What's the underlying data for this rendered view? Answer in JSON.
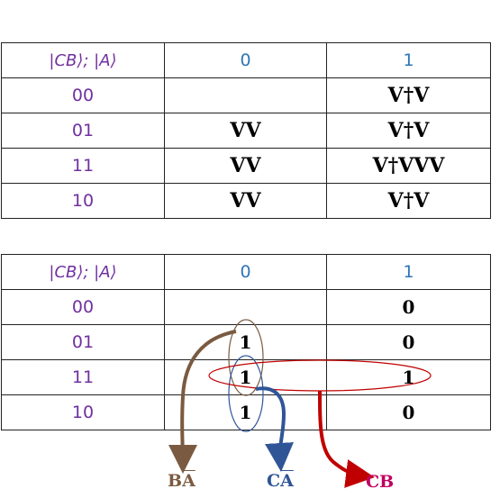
{
  "header": {
    "corner_label": "|CB⟩; |A⟩",
    "col0": "0",
    "col1": "1"
  },
  "top_table": {
    "rows": [
      {
        "label": "00",
        "c0": "",
        "c1": "V†V"
      },
      {
        "label": "01",
        "c0": "VV",
        "c1": "V†V"
      },
      {
        "label": "11",
        "c0": "VV",
        "c1": "V†VVV"
      },
      {
        "label": "10",
        "c0": "VV",
        "c1": "V†V"
      }
    ]
  },
  "bottom_table": {
    "rows": [
      {
        "label": "00",
        "c0": "",
        "c1": "0"
      },
      {
        "label": "01",
        "c0": "1",
        "c1": "0"
      },
      {
        "label": "11",
        "c0": "1",
        "c1": "1"
      },
      {
        "label": "10",
        "c0": "1",
        "c1": "0"
      }
    ]
  },
  "terms": {
    "ba_main": "B",
    "ba_bar": "A",
    "ca_main": "C",
    "ca_bar": "A",
    "cb": "CB"
  },
  "colors": {
    "brown": "#7a5a40",
    "navy": "#2f5597",
    "crimson": "#c00000",
    "magenta": "#c00060",
    "purple": "#7030a0",
    "blue": "#2e75b6"
  }
}
